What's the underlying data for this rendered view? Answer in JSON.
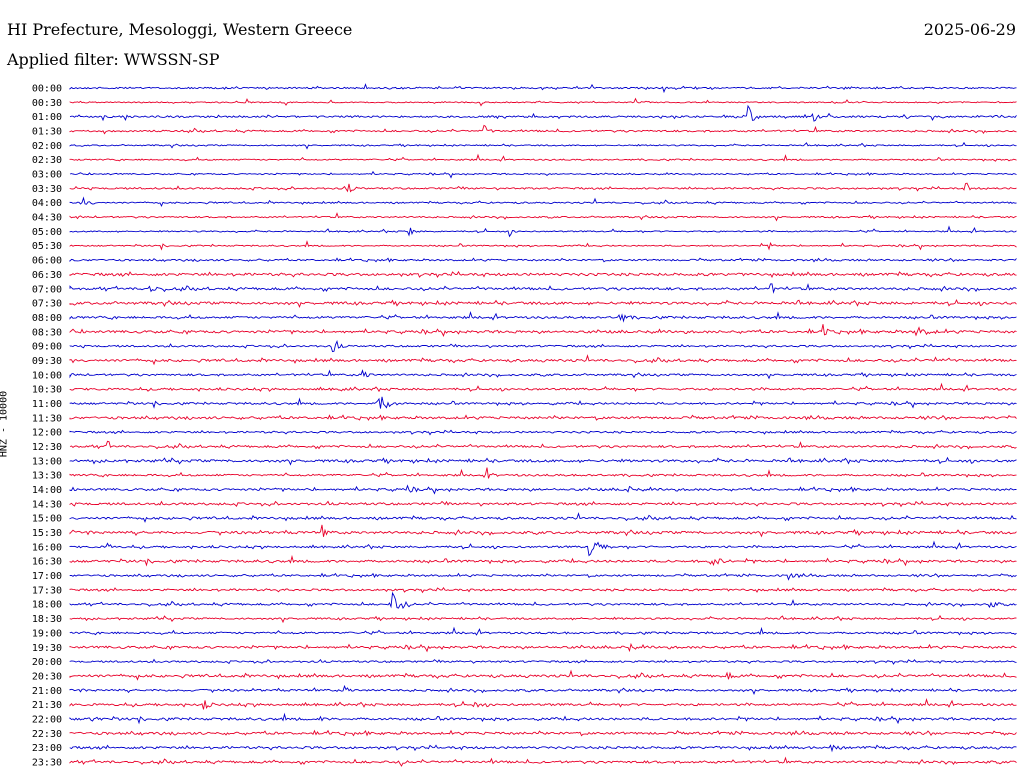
{
  "header": {
    "station": "HI Prefecture, Mesologgi, Western Greece",
    "date": "2025-06-29",
    "filter": "Applied filter: WWSSN-SP"
  },
  "chart_data": {
    "type": "line",
    "title": "HI Prefecture, Mesologgi, Western Greece",
    "subtitle": "Applied filter: WWSSN-SP",
    "date": "2025-06-29",
    "ylabel": "HNZ - 10000",
    "xlabel": "",
    "colors": {
      "even_row": "#0000cc",
      "odd_row": "#e8002a"
    },
    "rows": [
      "00:00",
      "00:30",
      "01:00",
      "01:30",
      "02:00",
      "02:30",
      "03:00",
      "03:30",
      "04:00",
      "04:30",
      "05:00",
      "05:30",
      "06:00",
      "06:30",
      "07:00",
      "07:30",
      "08:00",
      "08:30",
      "09:00",
      "09:30",
      "10:00",
      "10:30",
      "11:00",
      "11:30",
      "12:00",
      "12:30",
      "13:00",
      "13:30",
      "14:00",
      "14:30",
      "15:00",
      "15:30",
      "16:00",
      "16:30",
      "17:00",
      "17:30",
      "18:00",
      "18:30",
      "19:00",
      "19:30",
      "20:00",
      "20:30",
      "21:00",
      "21:30",
      "22:00",
      "22:30",
      "23:00",
      "23:30"
    ]
  }
}
